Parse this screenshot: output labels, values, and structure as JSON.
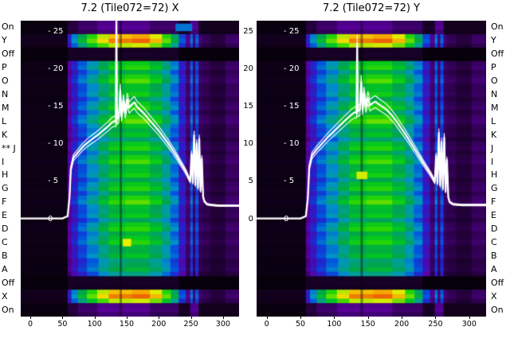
{
  "figure": {
    "row_marker": {
      "text": "**",
      "row_label": "J",
      "row_index": 9,
      "side": "left"
    },
    "y_tick_labels_inner": [
      "- 25",
      "- 20",
      "- 15",
      "- 10",
      "- 5",
      "0"
    ],
    "y_tick_labels_outer": [
      "25",
      "20",
      "15",
      "10",
      "5",
      "0"
    ],
    "x_tick_labels": [
      "0",
      "50",
      "100",
      "150",
      "200",
      "250",
      "300"
    ]
  },
  "chart_data": {
    "type": "heatmap+line",
    "x_range": [
      -15,
      325
    ],
    "y_range": [
      -12.9,
      26.6
    ],
    "x_ticks": [
      0,
      50,
      100,
      150,
      200,
      250,
      300
    ],
    "y_ticks": [
      25,
      20,
      15,
      10,
      5,
      0
    ],
    "line_color": "#ffffff",
    "rows": [
      {
        "label": "On",
        "type": "on",
        "gain": 1
      },
      {
        "label": "Y",
        "type": "hot",
        "gain": 1
      },
      {
        "label": "Off",
        "type": "off",
        "gain": 1
      },
      {
        "label": "P",
        "type": "normal",
        "gain": 1.0
      },
      {
        "label": "O",
        "type": "normal",
        "gain": 1.06
      },
      {
        "label": "N",
        "type": "normal",
        "gain": 0.95
      },
      {
        "label": "M",
        "type": "normal",
        "gain": 1.0
      },
      {
        "label": "L",
        "type": "normal",
        "gain": 1.08
      },
      {
        "label": "K",
        "type": "normal",
        "gain": 0.9
      },
      {
        "label": "J",
        "type": "normal",
        "gain": 1.0
      },
      {
        "label": "I",
        "type": "normal",
        "gain": 1.05
      },
      {
        "label": "H",
        "type": "normal",
        "gain": 0.96
      },
      {
        "label": "G",
        "type": "normal",
        "gain": 1.0
      },
      {
        "label": "F",
        "type": "normal",
        "gain": 1.07
      },
      {
        "label": "E",
        "type": "normal",
        "gain": 0.93
      },
      {
        "label": "D",
        "type": "normal",
        "gain": 1.02
      },
      {
        "label": "C",
        "type": "normal",
        "gain": 1.0
      },
      {
        "label": "B",
        "type": "normal",
        "gain": 0.9
      },
      {
        "label": "A",
        "type": "normal",
        "gain": 0.85
      },
      {
        "label": "Off",
        "type": "off",
        "gain": 1
      },
      {
        "label": "X",
        "type": "hot",
        "gain": 1
      },
      {
        "label": "On",
        "type": "on",
        "gain": 1
      }
    ],
    "colormap": [
      [
        0.0,
        "#000000"
      ],
      [
        0.08,
        "#23003a"
      ],
      [
        0.16,
        "#5c00a3"
      ],
      [
        0.24,
        "#2222cc"
      ],
      [
        0.3,
        "#0055dd"
      ],
      [
        0.36,
        "#0092c8"
      ],
      [
        0.42,
        "#00a08a"
      ],
      [
        0.48,
        "#00a44c"
      ],
      [
        0.55,
        "#00c81e"
      ],
      [
        0.62,
        "#30d800"
      ],
      [
        0.68,
        "#9ae400"
      ],
      [
        0.74,
        "#eeee00"
      ],
      [
        0.8,
        "#f5a800"
      ],
      [
        0.86,
        "#ef6a00"
      ],
      [
        0.92,
        "#dd2200"
      ],
      [
        1.0,
        "#cccccc"
      ]
    ],
    "band_profiles": {
      "normal": [
        [
          -15,
          58,
          0.03
        ],
        [
          58,
          64,
          0.16
        ],
        [
          64,
          74,
          0.23
        ],
        [
          74,
          88,
          0.3
        ],
        [
          88,
          106,
          0.37
        ],
        [
          106,
          122,
          0.46
        ],
        [
          122,
          148,
          0.53
        ],
        [
          148,
          186,
          0.56
        ],
        [
          186,
          205,
          0.5
        ],
        [
          205,
          218,
          0.42
        ],
        [
          218,
          231,
          0.33
        ],
        [
          231,
          242,
          0.22
        ],
        [
          242,
          249,
          0.12
        ],
        [
          249,
          253,
          0.3
        ],
        [
          253,
          257,
          0.12
        ],
        [
          257,
          262,
          0.28
        ],
        [
          262,
          267,
          0.11
        ],
        [
          267,
          280,
          0.1
        ],
        [
          280,
          304,
          0.08
        ],
        [
          304,
          325,
          0.11
        ]
      ],
      "hot": [
        [
          -15,
          58,
          0.04
        ],
        [
          58,
          64,
          0.22
        ],
        [
          64,
          74,
          0.34
        ],
        [
          74,
          88,
          0.48
        ],
        [
          88,
          104,
          0.6
        ],
        [
          104,
          122,
          0.7
        ],
        [
          122,
          158,
          0.78
        ],
        [
          158,
          186,
          0.8
        ],
        [
          186,
          205,
          0.73
        ],
        [
          205,
          219,
          0.6
        ],
        [
          219,
          231,
          0.46
        ],
        [
          231,
          242,
          0.28
        ],
        [
          242,
          249,
          0.14
        ],
        [
          249,
          253,
          0.32
        ],
        [
          253,
          257,
          0.13
        ],
        [
          257,
          262,
          0.3
        ],
        [
          262,
          267,
          0.12
        ],
        [
          267,
          280,
          0.1
        ],
        [
          280,
          304,
          0.08
        ],
        [
          304,
          325,
          0.11
        ]
      ],
      "on": [
        [
          -15,
          58,
          0.02
        ],
        [
          58,
          74,
          0.08
        ],
        [
          74,
          104,
          0.11
        ],
        [
          104,
          186,
          0.14
        ],
        [
          186,
          231,
          0.11
        ],
        [
          231,
          249,
          0.05
        ],
        [
          249,
          262,
          0.14
        ],
        [
          262,
          325,
          0.04
        ]
      ],
      "off": [
        [
          -15,
          58,
          0.015
        ],
        [
          58,
          231,
          0.05
        ],
        [
          231,
          325,
          0.015
        ]
      ]
    },
    "streaks": [
      {
        "x0": 139,
        "x1": 142.5,
        "alpha": 0.4
      }
    ],
    "panels": [
      {
        "title": "7.2 (Tile072=72) X",
        "anomalies": [
          {
            "row": 0,
            "x0": 226,
            "x1": 252,
            "v": 0.33
          },
          {
            "row": 16,
            "x0": 144,
            "x1": 157,
            "v": 0.74
          }
        ],
        "profile": [
          [
            -15,
            0.2
          ],
          [
            50,
            0.2
          ],
          [
            58,
            0.5
          ],
          [
            61,
            3
          ],
          [
            63,
            6.8
          ],
          [
            67,
            8.3
          ],
          [
            74,
            9.0
          ],
          [
            82,
            9.8
          ],
          [
            90,
            10.4
          ],
          [
            98,
            10.9
          ],
          [
            106,
            11.4
          ],
          [
            114,
            12.0
          ],
          [
            121,
            12.5
          ],
          [
            127,
            13.0
          ],
          [
            131,
            13.2
          ],
          [
            133,
            13.1
          ],
          [
            134,
            27
          ],
          [
            135,
            13.4
          ],
          [
            138,
            13.8
          ],
          [
            140,
            17.3
          ],
          [
            142,
            13.9
          ],
          [
            145,
            15.9
          ],
          [
            148,
            14.3
          ],
          [
            151,
            16.1
          ],
          [
            154,
            15.0
          ],
          [
            158,
            15.4
          ],
          [
            162,
            15.7
          ],
          [
            166,
            15.1
          ],
          [
            171,
            14.7
          ],
          [
            176,
            14.3
          ],
          [
            182,
            13.7
          ],
          [
            188,
            13.1
          ],
          [
            194,
            12.5
          ],
          [
            200,
            11.9
          ],
          [
            207,
            11.1
          ],
          [
            214,
            10.3
          ],
          [
            221,
            9.4
          ],
          [
            228,
            8.5
          ],
          [
            234,
            7.6
          ],
          [
            239,
            6.9
          ],
          [
            243,
            6.3
          ],
          [
            246,
            5.7
          ],
          [
            249,
            5.2
          ],
          [
            251,
            8.8
          ],
          [
            253,
            5.0
          ],
          [
            255,
            11.3
          ],
          [
            257,
            4.7
          ],
          [
            259,
            10.2
          ],
          [
            261,
            4.3
          ],
          [
            263,
            10.8
          ],
          [
            265,
            3.9
          ],
          [
            267,
            8.2
          ],
          [
            269,
            3.1
          ],
          [
            271,
            2.5
          ],
          [
            275,
            2.1
          ],
          [
            282,
            2.0
          ],
          [
            295,
            1.9
          ],
          [
            325,
            1.9
          ]
        ]
      },
      {
        "title": "7.2 (Tile072=72) Y",
        "anomalies": [
          {
            "row": 11,
            "x0": 133,
            "x1": 149,
            "v": 0.72
          }
        ],
        "profile": [
          [
            -15,
            0.2
          ],
          [
            50,
            0.2
          ],
          [
            58,
            0.5
          ],
          [
            61,
            3
          ],
          [
            63,
            7.0
          ],
          [
            67,
            8.6
          ],
          [
            74,
            9.4
          ],
          [
            82,
            10.2
          ],
          [
            90,
            11.0
          ],
          [
            98,
            11.7
          ],
          [
            106,
            12.4
          ],
          [
            114,
            13.1
          ],
          [
            120,
            13.6
          ],
          [
            126,
            14.1
          ],
          [
            131,
            14.4
          ],
          [
            133,
            14.3
          ],
          [
            134,
            23.5
          ],
          [
            135,
            14.5
          ],
          [
            138,
            14.7
          ],
          [
            140,
            18.4
          ],
          [
            142,
            14.8
          ],
          [
            144,
            16.9
          ],
          [
            147,
            15.1
          ],
          [
            150,
            16.3
          ],
          [
            153,
            15.3
          ],
          [
            157,
            15.6
          ],
          [
            161,
            15.8
          ],
          [
            165,
            15.5
          ],
          [
            170,
            15.2
          ],
          [
            175,
            14.9
          ],
          [
            180,
            14.5
          ],
          [
            186,
            13.9
          ],
          [
            192,
            13.2
          ],
          [
            198,
            12.4
          ],
          [
            205,
            11.5
          ],
          [
            212,
            10.5
          ],
          [
            219,
            9.5
          ],
          [
            226,
            8.5
          ],
          [
            232,
            7.6
          ],
          [
            238,
            6.8
          ],
          [
            243,
            6.1
          ],
          [
            246,
            5.6
          ],
          [
            249,
            5.1
          ],
          [
            251,
            8.5
          ],
          [
            253,
            4.9
          ],
          [
            255,
            11.6
          ],
          [
            257,
            4.6
          ],
          [
            259,
            10.4
          ],
          [
            261,
            4.2
          ],
          [
            263,
            11.0
          ],
          [
            265,
            3.8
          ],
          [
            267,
            8.0
          ],
          [
            269,
            3.0
          ],
          [
            271,
            2.4
          ],
          [
            276,
            2.1
          ],
          [
            290,
            2.0
          ],
          [
            325,
            2.0
          ]
        ]
      }
    ]
  }
}
